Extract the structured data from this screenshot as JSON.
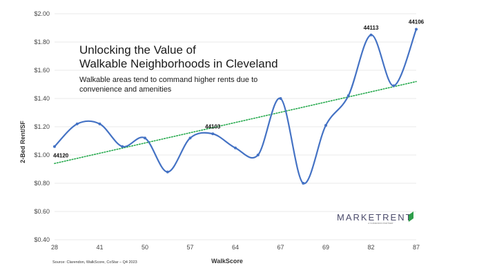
{
  "chart_data": {
    "type": "line",
    "title_lines": [
      "Unlocking the Value of",
      "Walkable Neighborhoods in Cleveland"
    ],
    "subtitle_lines": [
      "Walkable areas tend to command higher rents due to",
      "convenience and amenities"
    ],
    "xlabel": "WalkScore",
    "ylabel": "2-Bed Rent/SF",
    "x_tick_labels": [
      "28",
      "41",
      "50",
      "57",
      "64",
      "67",
      "69",
      "82",
      "87"
    ],
    "y_tick_labels": [
      "$0.40",
      "$0.60",
      "$0.80",
      "$1.00",
      "$1.20",
      "$1.40",
      "$1.60",
      "$1.80",
      "$2.00"
    ],
    "ylim": [
      0.4,
      2.0
    ],
    "series": [
      {
        "values": [
          1.06,
          1.22,
          1.22,
          1.06,
          1.12,
          0.88,
          1.12,
          1.15,
          1.05,
          1.0,
          1.4,
          0.8,
          1.21,
          1.42,
          1.85,
          1.49,
          1.89
        ],
        "color": "#4472c4"
      }
    ],
    "trendline": {
      "start": 0.94,
      "end": 1.52,
      "color": "#22a84a",
      "style": "dotted"
    },
    "point_labels": [
      {
        "index": 0,
        "text": "44120"
      },
      {
        "index": 7,
        "text": "44103"
      },
      {
        "index": 14,
        "text": "44113"
      },
      {
        "index": 16,
        "text": "44106"
      }
    ],
    "source": "Source: Clarendon, WalkScore, CoStar – Q4 2023",
    "logo": {
      "name": "MARKETRENT",
      "tagline": "A CLARENDON PARTNER",
      "accent": "#2e9e4a"
    }
  }
}
